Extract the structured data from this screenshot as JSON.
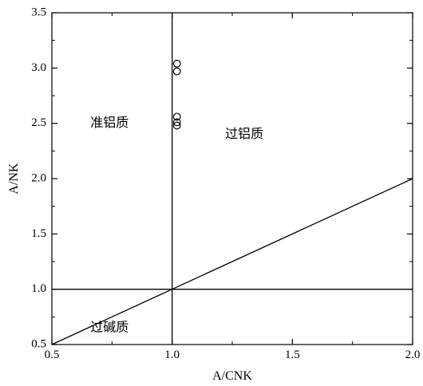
{
  "chart_data": {
    "type": "scatter",
    "xlabel": "A/CNK",
    "ylabel": "A/NK",
    "xlim": [
      0.5,
      2.0
    ],
    "ylim": [
      0.5,
      3.5
    ],
    "xticks": [
      "0.5",
      "1.0",
      "1.5",
      "2.0"
    ],
    "yticks": [
      "0.5",
      "1.0",
      "1.5",
      "2.0",
      "2.5",
      "3.0",
      "3.5"
    ],
    "grid": false,
    "series": [
      {
        "marker": "open-circle",
        "points": [
          {
            "x": 1.02,
            "y": 3.04
          },
          {
            "x": 1.02,
            "y": 2.97
          },
          {
            "x": 1.02,
            "y": 2.56
          },
          {
            "x": 1.02,
            "y": 2.51
          },
          {
            "x": 1.02,
            "y": 2.48
          }
        ]
      }
    ],
    "reference_lines": [
      {
        "from": [
          1.0,
          0.5
        ],
        "to": [
          1.0,
          3.5
        ]
      },
      {
        "from": [
          0.5,
          1.0
        ],
        "to": [
          2.0,
          1.0
        ]
      },
      {
        "from": [
          0.5,
          0.5
        ],
        "to": [
          2.0,
          2.0
        ]
      }
    ],
    "region_labels": [
      {
        "text": "准铝质",
        "x": 0.74,
        "y": 2.5
      },
      {
        "text": "过铝质",
        "x": 1.3,
        "y": 2.4
      },
      {
        "text": "过碱质",
        "x": 0.74,
        "y": 0.65
      }
    ]
  }
}
